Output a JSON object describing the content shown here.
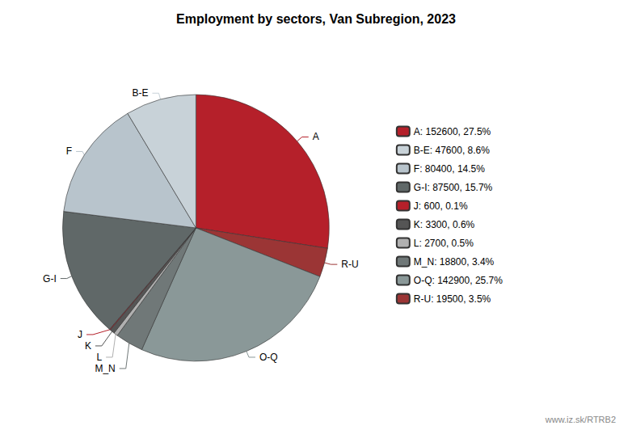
{
  "chart_data": {
    "type": "pie",
    "title": "Employment by sectors, Van Subregion, 2023",
    "categories": [
      "A",
      "R-U",
      "O-Q",
      "M_N",
      "L",
      "K",
      "J",
      "G-I",
      "F",
      "B-E"
    ],
    "values": [
      152600,
      19500,
      142900,
      18800,
      2700,
      3300,
      600,
      87500,
      80400,
      47600
    ],
    "colors": [
      "#b5202a",
      "#9b3535",
      "#8a9898",
      "#707878",
      "#b0b0b0",
      "#555555",
      "#b5202a",
      "#606868",
      "#b8c4cc",
      "#c8d2d8"
    ],
    "legend": "right",
    "legend_entries": [
      {
        "category": "A",
        "label": "A: 152600, 27.5%"
      },
      {
        "category": "B-E",
        "label": "B-E: 47600, 8.6%"
      },
      {
        "category": "F",
        "label": "F: 80400, 14.5%"
      },
      {
        "category": "G-I",
        "label": "G-I: 87500, 15.7%"
      },
      {
        "category": "J",
        "label": "J: 600, 0.1%"
      },
      {
        "category": "K",
        "label": "K: 3300, 0.6%"
      },
      {
        "category": "L",
        "label": "L: 2700, 0.5%"
      },
      {
        "category": "M_N",
        "label": "M_N: 18800, 3.4%"
      },
      {
        "category": "O-Q",
        "label": "O-Q: 142900, 25.7%"
      },
      {
        "category": "R-U",
        "label": "R-U: 19500, 3.5%"
      }
    ],
    "annotations": [
      "www.iz.sk/RTRB2"
    ]
  }
}
